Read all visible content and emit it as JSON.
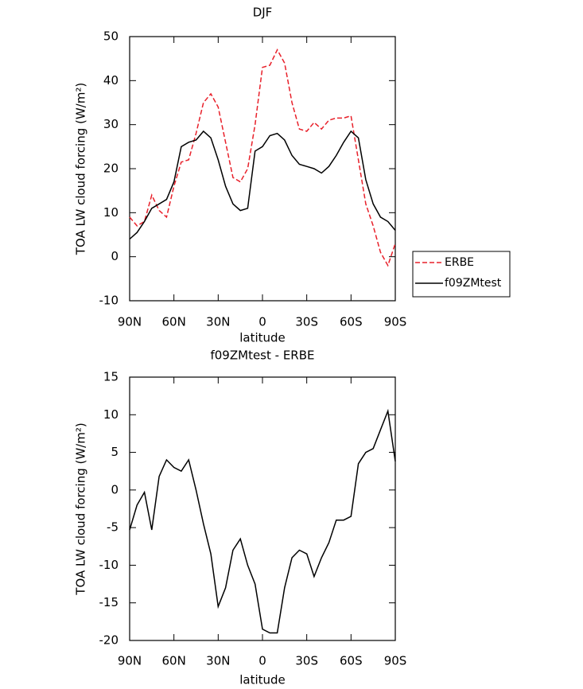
{
  "chart_data": [
    {
      "type": "line",
      "title": "DJF",
      "xlabel": "latitude",
      "ylabel": "TOA LW cloud forcing (W/m²)",
      "x": [
        90,
        85,
        80,
        75,
        70,
        65,
        60,
        55,
        50,
        45,
        40,
        35,
        30,
        25,
        20,
        15,
        10,
        5,
        0,
        -5,
        -10,
        -15,
        -20,
        -25,
        -30,
        -35,
        -40,
        -45,
        -50,
        -55,
        -60,
        -65,
        -70,
        -75,
        -80,
        -85,
        -90
      ],
      "xlim": [
        90,
        -90
      ],
      "xticks": [
        {
          "value": 90,
          "label": "90N"
        },
        {
          "value": 60,
          "label": "60N"
        },
        {
          "value": 30,
          "label": "30N"
        },
        0,
        {
          "value": -30,
          "label": "30S"
        },
        {
          "value": -60,
          "label": "60S"
        },
        {
          "value": -90,
          "label": "90S"
        }
      ],
      "ylim": [
        -10,
        50
      ],
      "yticks": [
        -10,
        0,
        10,
        20,
        30,
        40,
        50
      ],
      "legend": "right",
      "series": [
        {
          "name": "ERBE",
          "color": "#e8202a",
          "line_style": "dashed",
          "values": [
            9,
            7,
            8,
            14,
            10.5,
            9,
            16,
            21.5,
            22,
            28,
            35,
            37,
            34,
            26,
            18,
            17,
            20,
            30,
            43,
            43.5,
            47,
            44,
            35,
            29,
            28.5,
            30.5,
            29,
            31,
            31.5,
            31.5,
            32,
            22,
            12,
            7,
            1,
            -2,
            3
          ]
        },
        {
          "name": "f09ZMtest",
          "color": "#000000",
          "line_style": "solid",
          "values": [
            4,
            5.5,
            8,
            11,
            12,
            13,
            17,
            25,
            26,
            26.5,
            28.5,
            27,
            22,
            16,
            12,
            10.5,
            11,
            24,
            25,
            27.5,
            28,
            26.5,
            23,
            21,
            20.5,
            20,
            19,
            20.5,
            23,
            26,
            28.5,
            27,
            17.5,
            12,
            9,
            8,
            6
          ]
        }
      ]
    },
    {
      "type": "line",
      "title": "f09ZMtest - ERBE",
      "xlabel": "latitude",
      "ylabel": "TOA LW cloud forcing (W/m²)",
      "x": [
        90,
        85,
        80,
        75,
        70,
        65,
        60,
        55,
        50,
        45,
        40,
        35,
        30,
        25,
        20,
        15,
        10,
        5,
        0,
        -5,
        -10,
        -15,
        -20,
        -25,
        -30,
        -35,
        -40,
        -45,
        -50,
        -55,
        -60,
        -65,
        -70,
        -75,
        -80,
        -85,
        -90
      ],
      "xlim": [
        90,
        -90
      ],
      "xticks": [
        {
          "value": 90,
          "label": "90N"
        },
        {
          "value": 60,
          "label": "60N"
        },
        {
          "value": 30,
          "label": "30N"
        },
        0,
        {
          "value": -30,
          "label": "30S"
        },
        {
          "value": -60,
          "label": "60S"
        },
        {
          "value": -90,
          "label": "90S"
        }
      ],
      "ylim": [
        -20,
        15
      ],
      "yticks": [
        -20,
        -15,
        -10,
        -5,
        0,
        5,
        10,
        15
      ],
      "series": [
        {
          "color": "#000000",
          "line_style": "solid",
          "values": [
            -5.3,
            -2,
            -0.3,
            -5.3,
            1.8,
            4,
            3,
            2.5,
            4,
            0,
            -4.5,
            -8.5,
            -15.5,
            -13,
            -8,
            -6.5,
            -10,
            -12.5,
            -18.5,
            -19,
            -19,
            -13,
            -9,
            -8,
            -8.5,
            -11.5,
            -9,
            -7,
            -4,
            -4,
            -3.5,
            3.5,
            5,
            5.5,
            8,
            10.5,
            3.8
          ]
        }
      ]
    }
  ]
}
